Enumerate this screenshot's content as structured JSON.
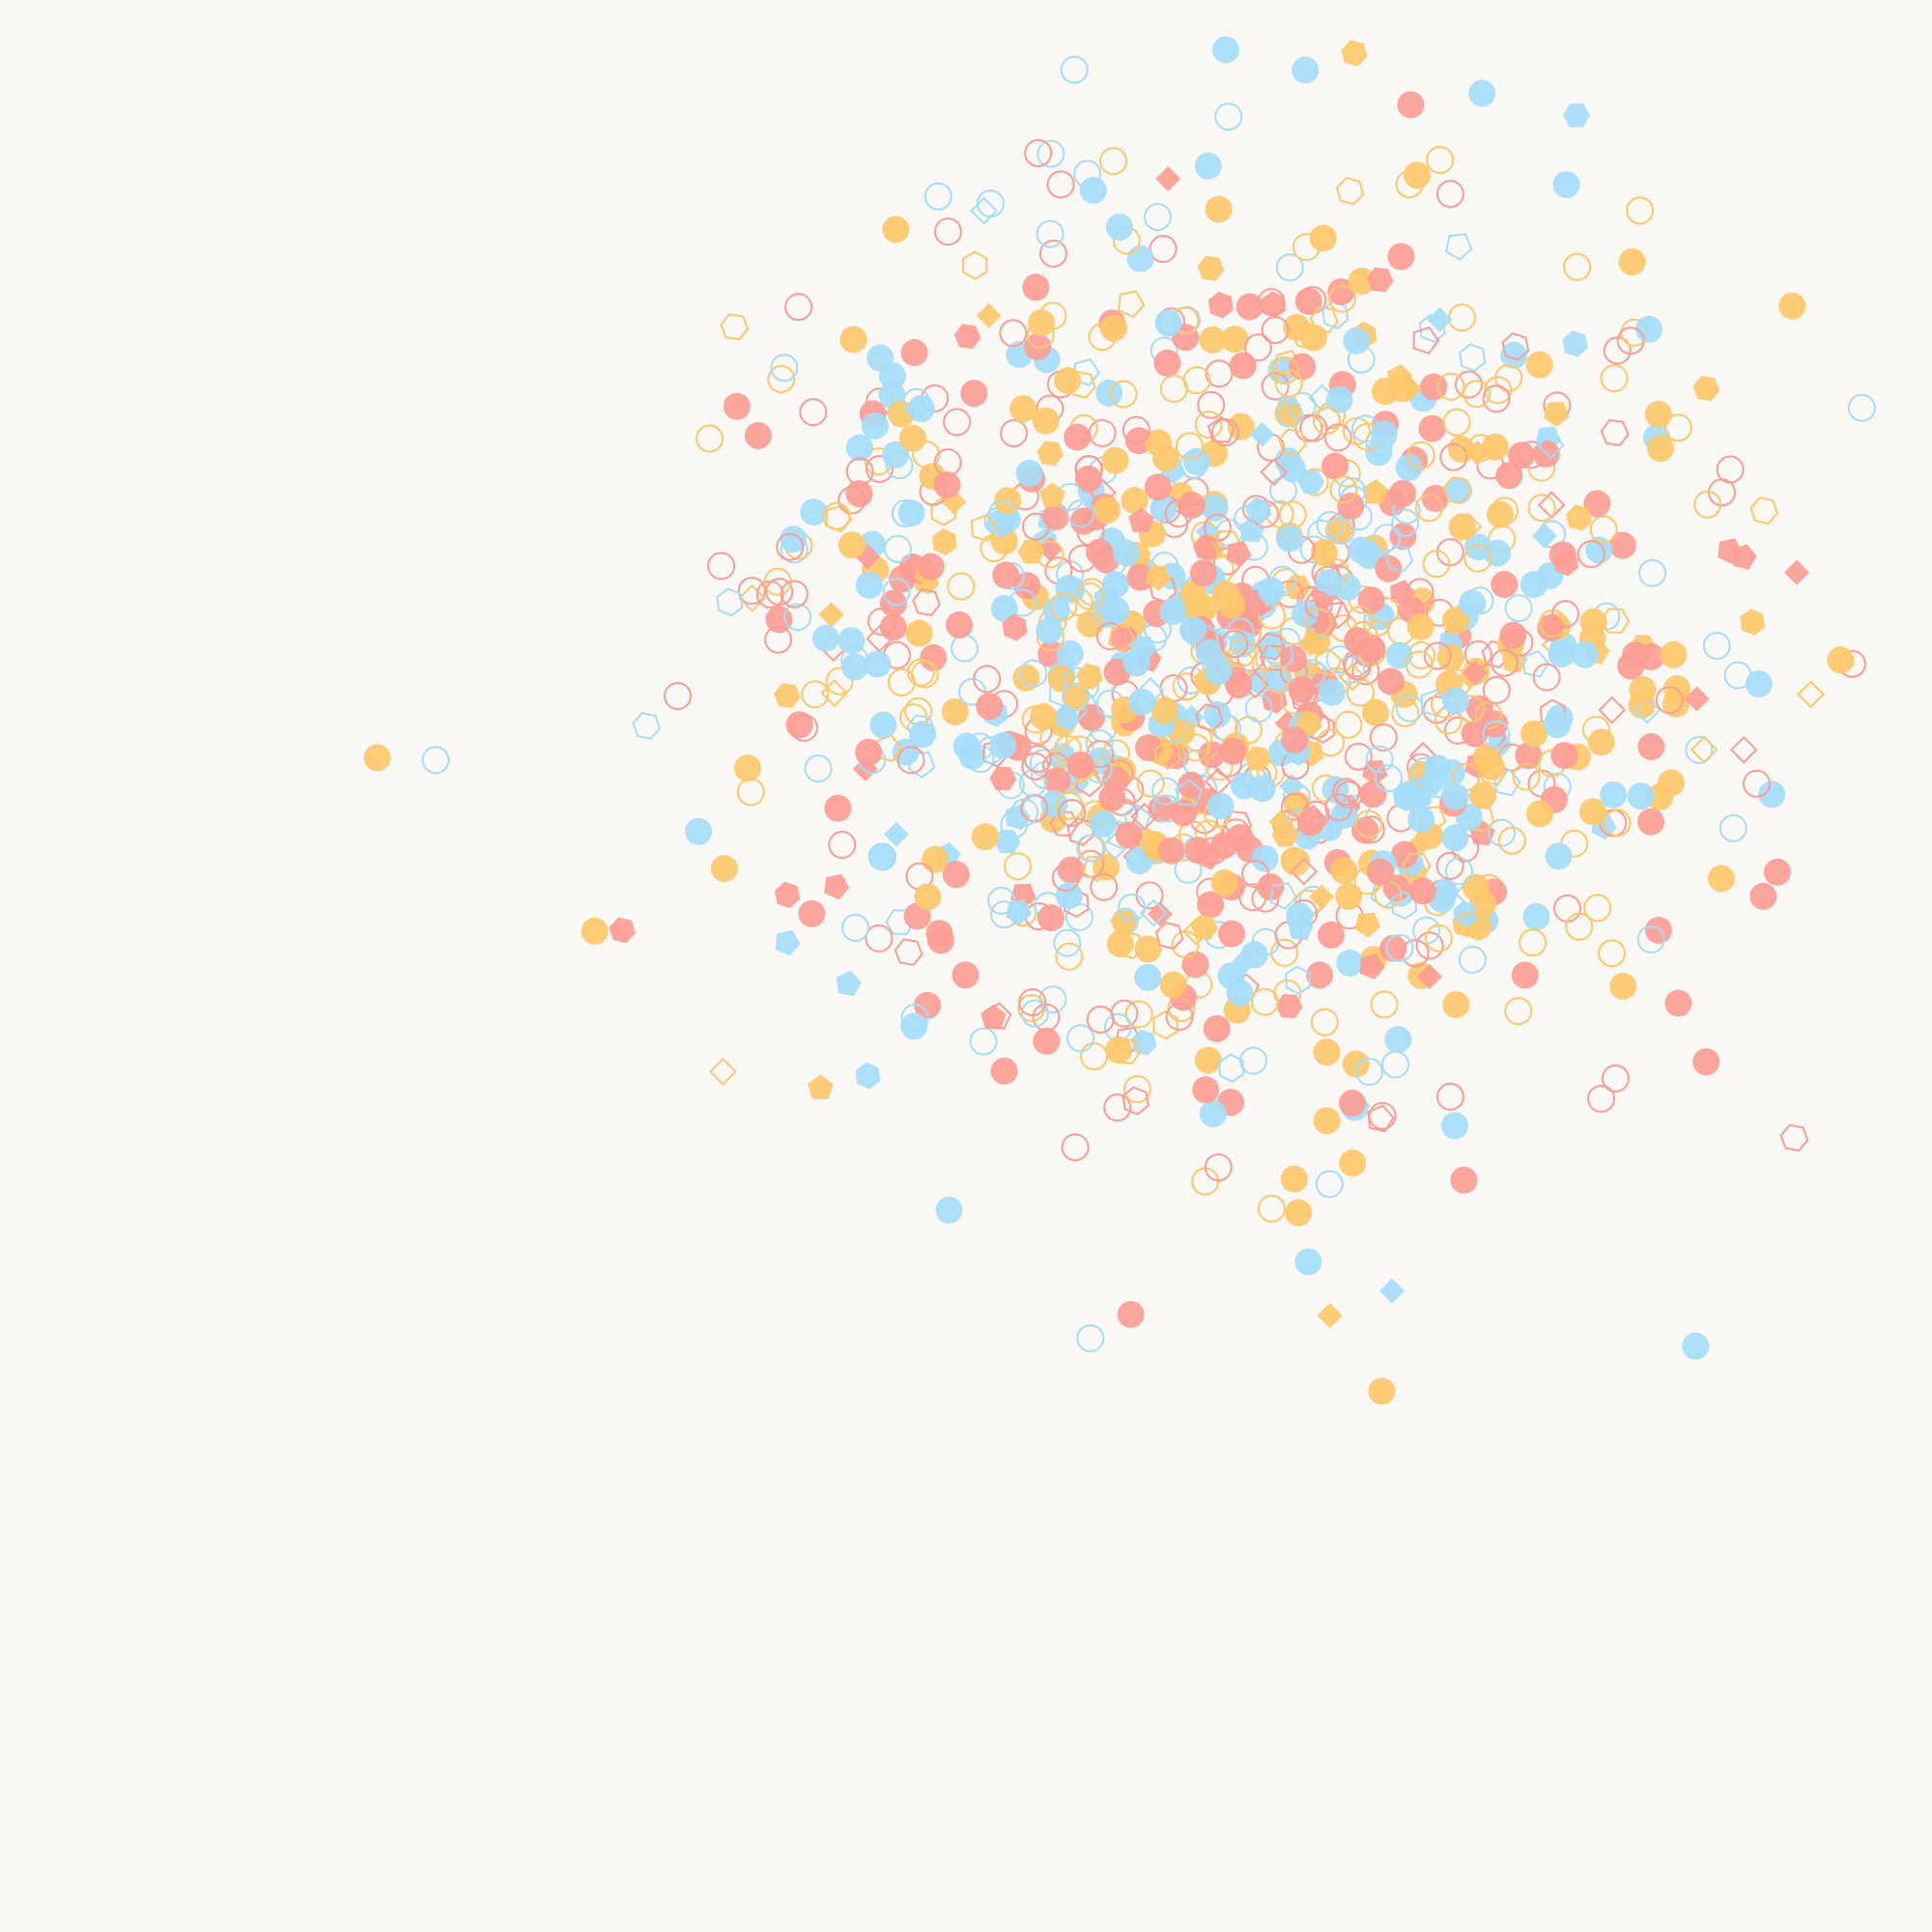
{
  "artwork": {
    "background": "#faf8f5",
    "palette": {
      "coral": "#fc9d95",
      "amber": "#fec86a",
      "sky": "#a5dcf9"
    },
    "shape_kinds": [
      "circle",
      "hexagon",
      "pentagon",
      "diamond"
    ],
    "fill_styles": [
      "filled",
      "outline"
    ]
  }
}
